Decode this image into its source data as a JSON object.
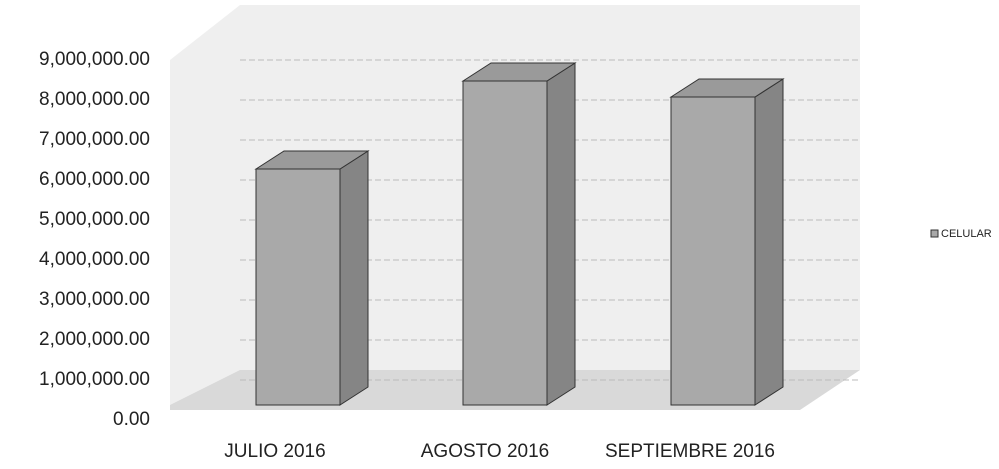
{
  "chart_data": {
    "type": "bar3d",
    "categories": [
      "JULIO 2016",
      "AGOSTO 2016",
      "SEPTIEMBRE 2016"
    ],
    "series": [
      {
        "name": "CELULAR",
        "color": "#a9a9a9",
        "values": [
          5900000,
          8100000,
          7700000
        ]
      }
    ],
    "ylim": [
      0,
      9000000
    ],
    "yticks": [
      {
        "value": 0,
        "label": "0.00"
      },
      {
        "value": 1000000,
        "label": "1,000,000.00"
      },
      {
        "value": 2000000,
        "label": "2,000,000.00"
      },
      {
        "value": 3000000,
        "label": "3,000,000.00"
      },
      {
        "value": 4000000,
        "label": "4,000,000.00"
      },
      {
        "value": 5000000,
        "label": "5,000,000.00"
      },
      {
        "value": 6000000,
        "label": "6,000,000.00"
      },
      {
        "value": 7000000,
        "label": "7,000,000.00"
      },
      {
        "value": 8000000,
        "label": "8,000,000.00"
      },
      {
        "value": 9000000,
        "label": "9,000,000.00"
      }
    ],
    "grid": true
  }
}
